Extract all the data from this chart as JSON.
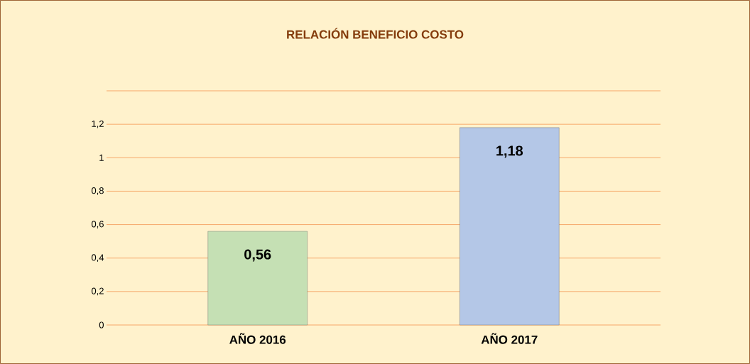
{
  "chart_data": {
    "type": "bar",
    "title": "RELACIÓN BENEFICIO COSTO",
    "categories": [
      "AÑO 2016",
      "AÑO 2017"
    ],
    "values": [
      0.56,
      1.18
    ],
    "colors": [
      "#c5e0b4",
      "#b4c7e7"
    ],
    "value_labels": [
      "0,56",
      "1,18"
    ],
    "ylim": [
      0,
      1.4
    ],
    "yticks": [
      {
        "value": 0,
        "label": "0"
      },
      {
        "value": 0.2,
        "label": "0,2"
      },
      {
        "value": 0.4,
        "label": "0,4"
      },
      {
        "value": 0.6,
        "label": "0,6"
      },
      {
        "value": 0.8,
        "label": "0,8"
      },
      {
        "value": 1,
        "label": "1"
      },
      {
        "value": 1.2,
        "label": "1,2"
      },
      {
        "value": 1.4,
        "label": null
      }
    ],
    "grid": "y"
  }
}
